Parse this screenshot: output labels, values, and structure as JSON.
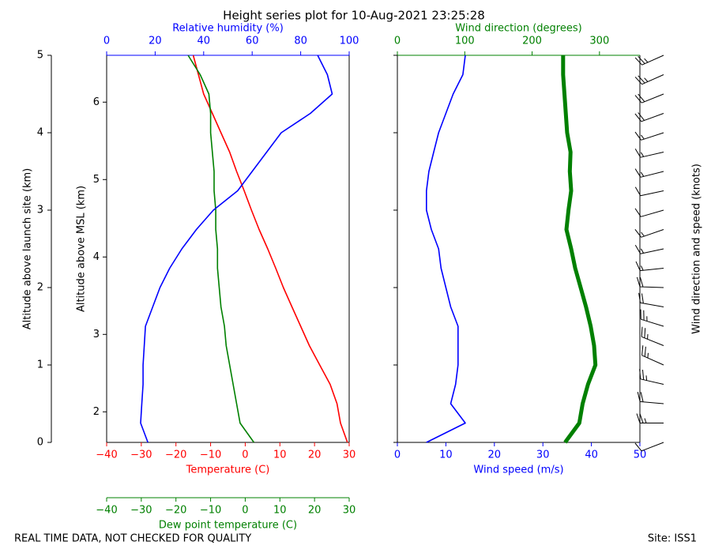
{
  "chart_data": [
    {
      "type": "line",
      "title": "Height series plot for 10-Aug-2021 23:25:28",
      "ylabel": "Altitude above launch site (km)",
      "y2label": "Altitude above MSL (km)",
      "ylim": [
        0,
        5
      ],
      "yticks": [
        0,
        1,
        2,
        3,
        4,
        5
      ],
      "y2lim": [
        1.605,
        6.605
      ],
      "y2ticks": [
        2,
        3,
        4,
        5,
        6
      ],
      "xlabel": "Temperature (C)",
      "xcolor": "#ff0000",
      "xlim": [
        -40,
        30
      ],
      "xticks": [
        {
          "value": -40,
          "label": "−40"
        },
        {
          "value": -30,
          "label": "−30"
        },
        {
          "value": -20,
          "label": "−20"
        },
        {
          "value": -10,
          "label": "−10"
        },
        0,
        10,
        20,
        30
      ],
      "x2label": "Relative humidity (%)",
      "x2color": "#0000ff",
      "x2lim": [
        0,
        100
      ],
      "x2ticks": [
        0,
        20,
        40,
        60,
        80,
        100
      ],
      "x3label": "Dew point temperature (C)",
      "x3color": "#008000",
      "x3lim": [
        -40,
        30
      ],
      "x3ticks": [
        {
          "value": -40,
          "label": "−40"
        },
        {
          "value": -30,
          "label": "−30"
        },
        {
          "value": -20,
          "label": "−20"
        },
        {
          "value": -10,
          "label": "−10"
        },
        0,
        10,
        20,
        30
      ],
      "y": [
        0,
        0.25,
        0.5,
        0.75,
        1,
        1.25,
        1.5,
        1.75,
        2,
        2.25,
        2.5,
        2.75,
        3,
        3.25,
        3.5,
        3.75,
        4,
        4.25,
        4.5,
        4.75,
        5
      ],
      "series": [
        {
          "axis": "x",
          "color": "#ff0000",
          "width": 1.6,
          "values": [
            29.5,
            27.5,
            26.5,
            24.5,
            21.5,
            18.5,
            16,
            13.5,
            11,
            8.8,
            6.5,
            4,
            1.8,
            -0.3,
            -2.5,
            -4.5,
            -7,
            -9.5,
            -12,
            -13.5,
            -15
          ]
        },
        {
          "axis": "x3",
          "color": "#008000",
          "width": 1.6,
          "values": [
            2.5,
            -1.5,
            -2.5,
            -3.5,
            -4.5,
            -5.5,
            -6,
            -7,
            -7.5,
            -8,
            -8,
            -8.5,
            -8.5,
            -9,
            -9,
            -9.5,
            -10,
            -10,
            -10.5,
            -13,
            -16.5
          ]
        },
        {
          "axis": "x2",
          "color": "#0000ff",
          "width": 1.6,
          "values": [
            17,
            14,
            14.5,
            15,
            15,
            15.5,
            16,
            19,
            22,
            26,
            31,
            37,
            44,
            54,
            60,
            66,
            72,
            84,
            93,
            91,
            87
          ]
        }
      ]
    },
    {
      "type": "line",
      "ylabel": "Wind direction and speed (knots)",
      "ylim": [
        0,
        5
      ],
      "yticks": [
        0,
        1,
        2,
        3,
        4,
        5
      ],
      "xlabel": "Wind speed (m/s)",
      "xcolor": "#0000ff",
      "xlim": [
        0,
        50
      ],
      "xticks": [
        0,
        10,
        20,
        30,
        40,
        50
      ],
      "x2label": "Wind direction (degrees)",
      "x2color": "#008000",
      "x2lim": [
        0,
        360
      ],
      "x2ticks": [
        0,
        100,
        200,
        300
      ],
      "y": [
        0,
        0.25,
        0.5,
        0.75,
        1,
        1.25,
        1.5,
        1.75,
        2,
        2.25,
        2.5,
        2.75,
        3,
        3.25,
        3.5,
        3.75,
        4,
        4.25,
        4.5,
        4.75,
        5
      ],
      "barbs": true,
      "series": [
        {
          "axis": "x",
          "color": "#0000ff",
          "width": 1.6,
          "values": [
            6,
            14,
            11,
            12,
            12.5,
            12.5,
            12.5,
            11,
            10,
            9,
            8.5,
            7,
            6,
            6,
            6.5,
            7.5,
            8.5,
            10,
            11.5,
            13.5,
            14
          ]
        },
        {
          "axis": "x2",
          "color": "#008000",
          "width": 5,
          "values": [
            249,
            270,
            275,
            283,
            294,
            292,
            287,
            280,
            272,
            264,
            258,
            251,
            254,
            258,
            256,
            257,
            252,
            250,
            248,
            246,
            246
          ]
        }
      ]
    }
  ],
  "footer": {
    "left": "REAL TIME DATA, NOT CHECKED FOR QUALITY",
    "right": "Site: ISS1"
  }
}
